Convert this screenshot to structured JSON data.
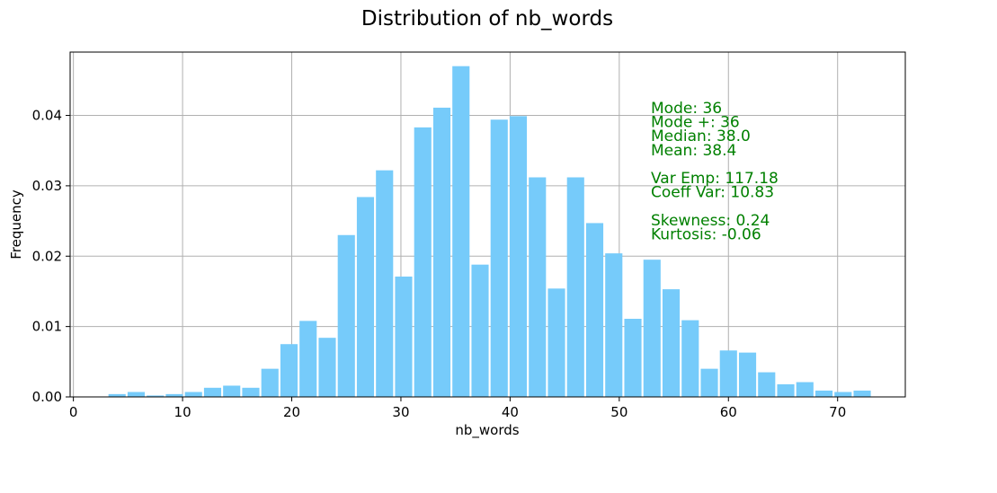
{
  "chart_data": {
    "type": "bar",
    "title": "Distribution of nb_words",
    "xlabel": "nb_words",
    "ylabel": "Frequency",
    "xlim": [
      -0.3,
      76.2
    ],
    "ylim": [
      0,
      0.049
    ],
    "x_ticks": [
      0,
      10,
      20,
      30,
      40,
      50,
      60,
      70
    ],
    "x_tick_labels": [
      "0",
      "10",
      "20",
      "30",
      "40",
      "50",
      "60",
      "70"
    ],
    "y_ticks": [
      0.0,
      0.01,
      0.02,
      0.03,
      0.04
    ],
    "y_tick_labels": [
      "0.00",
      "0.01",
      "0.02",
      "0.03",
      "0.04"
    ],
    "grid": true,
    "bar_color": "#76cbfa",
    "bin_width": 1.75,
    "bins": [
      {
        "x": 4.0,
        "value": 0.0004
      },
      {
        "x": 5.75,
        "value": 0.0007
      },
      {
        "x": 7.5,
        "value": 0.0002
      },
      {
        "x": 9.25,
        "value": 0.0004
      },
      {
        "x": 11.0,
        "value": 0.0007
      },
      {
        "x": 12.75,
        "value": 0.0013
      },
      {
        "x": 14.5,
        "value": 0.0016
      },
      {
        "x": 16.25,
        "value": 0.0013
      },
      {
        "x": 18.0,
        "value": 0.004
      },
      {
        "x": 19.75,
        "value": 0.0075
      },
      {
        "x": 21.5,
        "value": 0.0108
      },
      {
        "x": 23.25,
        "value": 0.0084
      },
      {
        "x": 25.0,
        "value": 0.023
      },
      {
        "x": 26.75,
        "value": 0.0284
      },
      {
        "x": 28.5,
        "value": 0.0322
      },
      {
        "x": 30.25,
        "value": 0.0171
      },
      {
        "x": 32.0,
        "value": 0.0383
      },
      {
        "x": 33.75,
        "value": 0.0411
      },
      {
        "x": 35.5,
        "value": 0.047
      },
      {
        "x": 37.25,
        "value": 0.0188
      },
      {
        "x": 39.0,
        "value": 0.0394
      },
      {
        "x": 40.75,
        "value": 0.0399
      },
      {
        "x": 42.5,
        "value": 0.0312
      },
      {
        "x": 44.25,
        "value": 0.0154
      },
      {
        "x": 46.0,
        "value": 0.0312
      },
      {
        "x": 47.75,
        "value": 0.0247
      },
      {
        "x": 49.5,
        "value": 0.0204
      },
      {
        "x": 51.25,
        "value": 0.0111
      },
      {
        "x": 53.0,
        "value": 0.0195
      },
      {
        "x": 54.75,
        "value": 0.0153
      },
      {
        "x": 56.5,
        "value": 0.0109
      },
      {
        "x": 58.25,
        "value": 0.004
      },
      {
        "x": 60.0,
        "value": 0.0066
      },
      {
        "x": 61.75,
        "value": 0.0063
      },
      {
        "x": 63.5,
        "value": 0.0035
      },
      {
        "x": 65.25,
        "value": 0.0018
      },
      {
        "x": 67.0,
        "value": 0.0021
      },
      {
        "x": 68.75,
        "value": 0.0009
      },
      {
        "x": 70.5,
        "value": 0.0007
      },
      {
        "x": 72.25,
        "value": 0.0009
      }
    ],
    "annotations": [
      "Mode: 36",
      "Mode +: 36",
      "Median: 38.0",
      "Mean: 38.4",
      "",
      "Var Emp: 117.18",
      "Coeff Var: 10.83",
      "",
      "Skewness: 0.24",
      "Kurtosis: -0.06"
    ],
    "annotation_color": "#008000"
  }
}
